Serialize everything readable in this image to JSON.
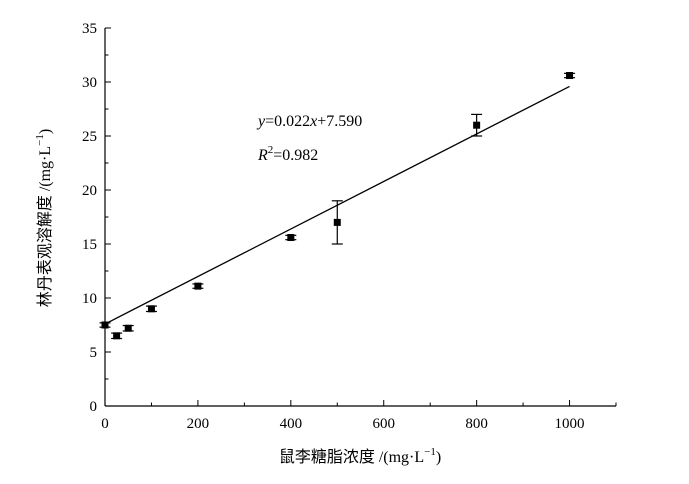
{
  "chart_data": {
    "type": "scatter",
    "xlabel": "鼠李糖脂浓度 /(mg·L",
    "xlabel_sup": "−1",
    "xlabel_close": ")",
    "ylabel": "林丹表观溶解度 /(mg·L",
    "ylabel_sup": "−1",
    "ylabel_close": ")",
    "xlim": [
      0,
      1100
    ],
    "ylim": [
      0,
      35
    ],
    "x_ticks": [
      0,
      200,
      400,
      600,
      800,
      1000
    ],
    "y_ticks": [
      0,
      5,
      10,
      15,
      20,
      25,
      30,
      35
    ],
    "grid": false,
    "series": [
      {
        "marker": "square",
        "color": "#000000",
        "points": [
          {
            "x": 0,
            "y": 7.5,
            "err": 0.2
          },
          {
            "x": 25,
            "y": 6.5,
            "err": 0.25
          },
          {
            "x": 50,
            "y": 7.2,
            "err": 0.25
          },
          {
            "x": 100,
            "y": 9.0,
            "err": 0.25
          },
          {
            "x": 200,
            "y": 11.1,
            "err": 0.2
          },
          {
            "x": 400,
            "y": 15.6,
            "err": 0.2
          },
          {
            "x": 500,
            "y": 17.0,
            "err": 2.0
          },
          {
            "x": 800,
            "y": 26.0,
            "err": 1.0
          },
          {
            "x": 1000,
            "y": 30.6,
            "err": 0.2
          }
        ]
      }
    ],
    "fit_line": {
      "slope": 0.022,
      "intercept": 7.59,
      "x_range": [
        0,
        1000
      ]
    },
    "annotation": {
      "eq_y": "y",
      "eq_rest": "=0.022",
      "eq_x": "x",
      "eq_tail": "+7.590",
      "r2_R": "R",
      "r2_sup": "2",
      "r2_val": "=0.982"
    }
  }
}
